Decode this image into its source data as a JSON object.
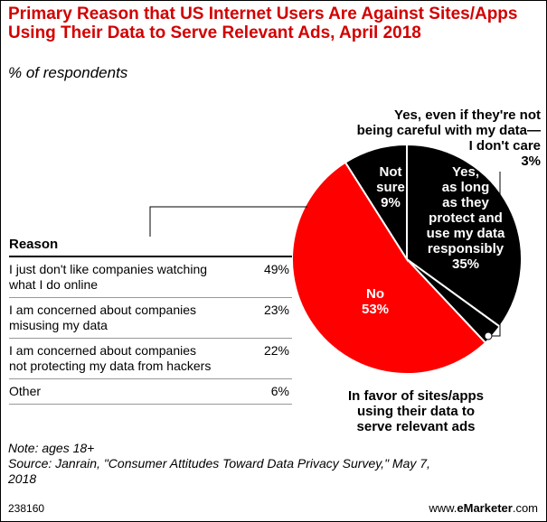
{
  "title": "Primary Reason that US Internet Users Are Against Sites/Apps Using Their Data to Serve Relevant Ads, April 2018",
  "subtitle": "% of respondents",
  "colors": {
    "title": "#d20000",
    "no": "#ff0000",
    "yes": "#000000",
    "not_sure": "#000000"
  },
  "chart_data": {
    "type": "pie",
    "slices": [
      {
        "label": "Yes, as long as they protect and use my data responsibly",
        "value": 35,
        "color": "#000000"
      },
      {
        "label": "Yes, even if they're not being careful with my data—I don't care",
        "value": 3,
        "color": "#000000"
      },
      {
        "label": "No",
        "value": 53,
        "color": "#ff0000"
      },
      {
        "label": "Not sure",
        "value": 9,
        "color": "#000000"
      }
    ],
    "labels": {
      "yes_careless_line1": "Yes, even if they're not",
      "yes_careless_line2": "being careful with my data—",
      "yes_careless_line3": "I don't care",
      "yes_careless_value": "3%",
      "not_sure_line1": "Not",
      "not_sure_line2": "sure",
      "not_sure_value": "9%",
      "yes_line1": "Yes,",
      "yes_line2": "as long",
      "yes_line3": "as they",
      "yes_line4": "protect and",
      "yes_line5": "use my data",
      "yes_line6": "responsibly",
      "yes_value": "35%",
      "no_line1": "No",
      "no_value": "53%",
      "favor_line1": "In favor of sites/apps",
      "favor_line2": "using their data to",
      "favor_line3": "serve relevant ads"
    }
  },
  "table": {
    "header": "Reason",
    "rows": [
      {
        "line1": "I just don't like companies watching",
        "line2": "what I do online",
        "value": "49%"
      },
      {
        "line1": "I am concerned about companies",
        "line2": "misusing my data",
        "value": "23%"
      },
      {
        "line1": "I am concerned about companies",
        "line2": "not protecting my data from hackers",
        "value": "22%"
      },
      {
        "line1": "Other",
        "line2": "",
        "value": "6%"
      }
    ]
  },
  "notes": {
    "line1": "Note: ages 18+",
    "line2": "Source: Janrain, \"Consumer Attitudes Toward Data Privacy Survey,\" May 7,",
    "line3": "2018"
  },
  "footer": {
    "id": "238160",
    "brand_prefix": "www.",
    "brand_bold": "eMarketer",
    "brand_suffix": ".com"
  }
}
